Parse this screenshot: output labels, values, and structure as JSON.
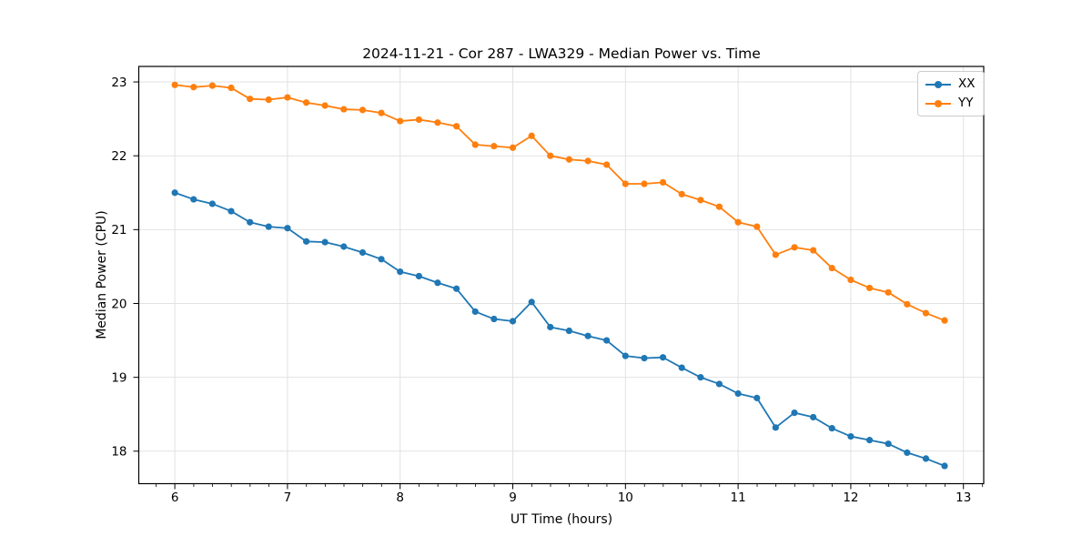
{
  "chart_data": {
    "type": "line",
    "title": "2024-11-21 - Cor 287 - LWA329 - Median Power vs. Time",
    "xlabel": "UT Time (hours)",
    "ylabel": "Median Power (CPU)",
    "xlim": [
      5.68,
      13.18
    ],
    "ylim": [
      17.56,
      23.21
    ],
    "x_ticks": [
      6,
      7,
      8,
      9,
      10,
      11,
      12,
      13
    ],
    "y_ticks": [
      18,
      19,
      20,
      21,
      22,
      23
    ],
    "x_minor_tick_step": 0.1667,
    "grid": "major",
    "legend_position": "upper right",
    "background": "#ffffff",
    "grid_color": "#e2e2e2",
    "x": [
      6.0,
      6.167,
      6.333,
      6.5,
      6.667,
      6.833,
      7.0,
      7.167,
      7.333,
      7.5,
      7.667,
      7.833,
      8.0,
      8.167,
      8.333,
      8.5,
      8.667,
      8.833,
      9.0,
      9.167,
      9.333,
      9.5,
      9.667,
      9.833,
      10.0,
      10.167,
      10.333,
      10.5,
      10.667,
      10.833,
      11.0,
      11.167,
      11.333,
      11.5,
      11.667,
      11.833,
      12.0,
      12.167,
      12.333,
      12.5,
      12.667,
      12.833
    ],
    "series": [
      {
        "name": "XX",
        "color": "#1f77b4",
        "values": [
          21.5,
          21.41,
          21.35,
          21.25,
          21.1,
          21.04,
          21.02,
          20.84,
          20.83,
          20.77,
          20.69,
          20.6,
          20.43,
          20.37,
          20.28,
          20.2,
          19.89,
          19.79,
          19.76,
          20.02,
          19.68,
          19.63,
          19.56,
          19.5,
          19.29,
          19.26,
          19.27,
          19.13,
          19.0,
          18.91,
          18.78,
          18.72,
          18.32,
          18.52,
          18.46,
          18.31,
          18.2,
          18.15,
          18.1,
          17.98,
          17.9,
          17.8
        ]
      },
      {
        "name": "YY",
        "color": "#ff7f0e",
        "values": [
          22.96,
          22.93,
          22.95,
          22.92,
          22.77,
          22.76,
          22.79,
          22.72,
          22.68,
          22.63,
          22.62,
          22.58,
          22.47,
          22.49,
          22.45,
          22.4,
          22.15,
          22.13,
          22.11,
          22.27,
          22.0,
          21.95,
          21.93,
          21.88,
          21.62,
          21.62,
          21.64,
          21.48,
          21.4,
          21.31,
          21.1,
          21.04,
          20.66,
          20.76,
          20.72,
          20.48,
          20.32,
          20.21,
          20.15,
          19.99,
          19.87,
          19.77
        ]
      }
    ]
  }
}
